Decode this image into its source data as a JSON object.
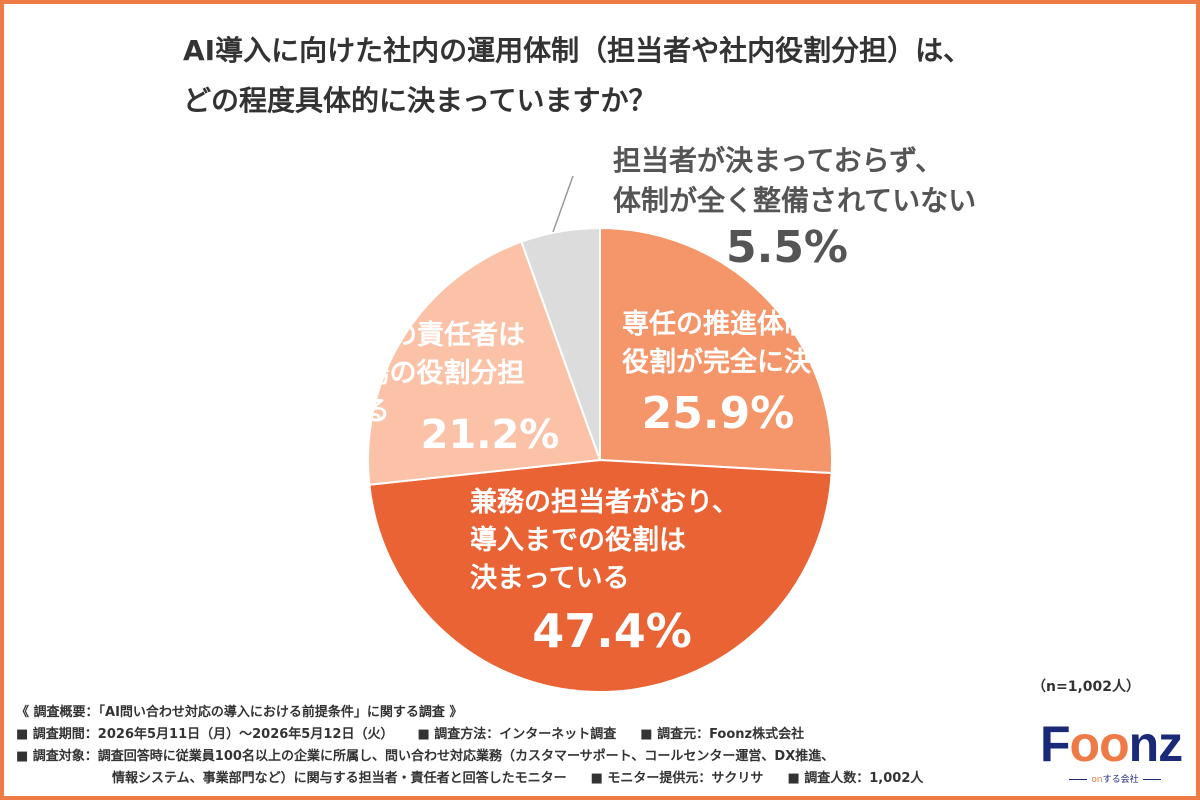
{
  "title": {
    "line1": "AI導入に向けた社内の運用体制（担当者や社内役割分担）は、",
    "line2": "どの程度具体的に決まっていますか？"
  },
  "chart_data": {
    "type": "pie",
    "start_angle_deg": 0,
    "direction": "clockwise",
    "slices": [
      {
        "lines": [
          "専任の推進体制があり、",
          "役割が完全に決まっている"
        ],
        "value": 25.9,
        "value_label": "25.9%",
        "color": "#f5956a",
        "label_color": "#ffffff"
      },
      {
        "lines": [
          "兼務の担当者がおり、",
          "導入までの役割は",
          "決まっている"
        ],
        "value": 47.4,
        "value_label": "47.4%",
        "color": "#ea6335",
        "label_color": "#ffffff"
      },
      {
        "lines": [
          "プロジェクトの責任者は",
          "いるが、実務の役割分担",
          "は曖昧である"
        ],
        "value": 21.2,
        "value_label": "21.2%",
        "color": "#fbc2a7",
        "label_color": "#ffffff"
      },
      {
        "lines": [
          "担当者が決まっておらず、",
          "体制が全く整備されていない"
        ],
        "value": 5.5,
        "value_label": "5.5%",
        "color": "#dcdcdc",
        "label_color": "#555555"
      }
    ]
  },
  "sample_size": "（n=1,002人）",
  "notes": {
    "overview": "《 調査概要：「AI問い合わせ対応の導入における前提条件」に関する調査 》",
    "period": "■ 調査期間：2026年5月11日（月）〜2026年5月12日（火）",
    "method": "■ 調査方法：インターネット調査",
    "source": "■ 調査元：Foonz株式会社",
    "target_line1": "■ 調査対象：調査回答時に従業員100名以上の企業に所属し、問い合わせ対応業務（カスタマーサポート、コールセンター運営、DX推進、",
    "target_line2": "情報システム、事業部門など）に関与する担当者・責任者と回答したモニター",
    "provider": "■ モニター提供元：サクリサ",
    "respondents": "■ 調査人数：1,002人"
  },
  "logo": {
    "word_part1": "F",
    "word_part2": "oo",
    "word_part3": "nz",
    "tag_part1": "on",
    "tag_part2": "する会社"
  },
  "colors": {
    "accent": "#ee7a45",
    "brand_navy": "#1b2a78",
    "text": "#333333"
  }
}
